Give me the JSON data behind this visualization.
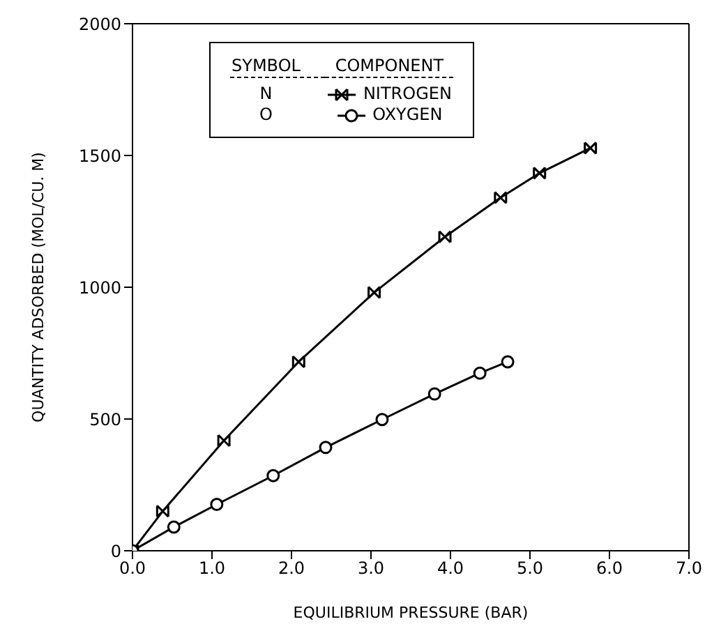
{
  "chart_data": {
    "type": "line",
    "xlabel": "EQUILIBRIUM PRESSURE (BAR)",
    "ylabel": "QUANTITY ADSORBED (MOL/CU. M)",
    "xlim": [
      0,
      7
    ],
    "xticks": [
      {
        "value": 0,
        "label": "0.0"
      },
      {
        "value": 1,
        "label": "1.0"
      },
      {
        "value": 2,
        "label": "2.0"
      },
      {
        "value": 3,
        "label": "3.0"
      },
      {
        "value": 4,
        "label": "4.0"
      },
      {
        "value": 5,
        "label": "5.0"
      },
      {
        "value": 6,
        "label": "6.0"
      },
      {
        "value": 7,
        "label": "7.0"
      }
    ],
    "ylim": [
      0,
      2000
    ],
    "yticks": [
      0,
      500,
      1000,
      1500,
      2000
    ],
    "legend": "top left",
    "legend_title": "COMPONENT",
    "annotations": [
      "SYMBOL",
      "N",
      "O"
    ],
    "series": [
      {
        "name": "NITROGEN",
        "color": "#000000",
        "marker": "cross",
        "x": [
          0,
          0.38,
          1.15,
          2.09,
          3.04,
          3.93,
          4.63,
          5.12,
          5.76
        ],
        "values": [
          0,
          150,
          418,
          717,
          980,
          1191,
          1340,
          1433,
          1528
        ]
      },
      {
        "name": "OXYGEN",
        "color": "#000000",
        "marker": "circle",
        "x": [
          0,
          0.52,
          1.06,
          1.77,
          2.43,
          3.14,
          3.8,
          4.37,
          4.72
        ],
        "values": [
          0,
          90,
          176,
          285,
          392,
          498,
          595,
          674,
          717
        ]
      }
    ]
  }
}
